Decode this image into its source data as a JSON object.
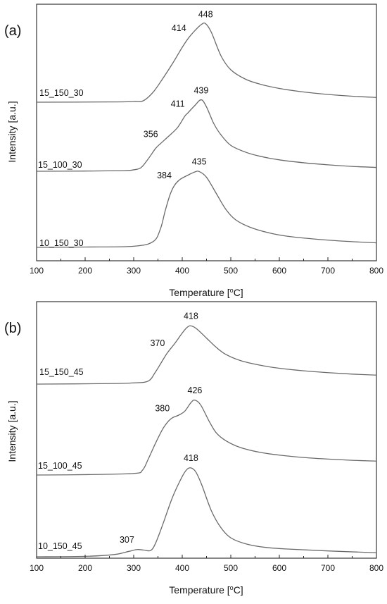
{
  "chart_data": [
    {
      "type": "line",
      "panel_label": "(a)",
      "xlabel": "Temperature [°C]",
      "xlabel_main": "Temperature [",
      "xlabel_sup": "o",
      "xlabel_unit": "C]",
      "ylabel": "Intensity [a.u.]",
      "xlim": [
        100,
        800
      ],
      "xticks": [
        "100",
        "200",
        "300",
        "400",
        "500",
        "600",
        "700",
        "800"
      ],
      "y_tick_labels": false,
      "grid": false,
      "legend": "none",
      "series": [
        {
          "name": "15_150_30",
          "points": [
            [
              100,
              0.0
            ],
            [
              250,
              0.02
            ],
            [
              300,
              0.05
            ],
            [
              320,
              0.12
            ],
            [
              340,
              0.8
            ],
            [
              360,
              1.9
            ],
            [
              380,
              3.1
            ],
            [
              400,
              4.4
            ],
            [
              414,
              5.2
            ],
            [
              430,
              5.9
            ],
            [
              440,
              6.25
            ],
            [
              448,
              6.3
            ],
            [
              460,
              5.6
            ],
            [
              480,
              3.7
            ],
            [
              500,
              2.6
            ],
            [
              530,
              1.85
            ],
            [
              560,
              1.45
            ],
            [
              600,
              1.1
            ],
            [
              650,
              0.82
            ],
            [
              700,
              0.62
            ],
            [
              750,
              0.48
            ],
            [
              800,
              0.38
            ]
          ],
          "peaks": [
            {
              "x": 414,
              "label": "414"
            },
            {
              "x": 448,
              "label": "448"
            }
          ]
        },
        {
          "name": "15_100_30",
          "points": [
            [
              100,
              0.0
            ],
            [
              200,
              0.02
            ],
            [
              280,
              0.06
            ],
            [
              300,
              0.14
            ],
            [
              315,
              0.35
            ],
            [
              330,
              1.2
            ],
            [
              345,
              2.2
            ],
            [
              356,
              2.7
            ],
            [
              370,
              3.3
            ],
            [
              390,
              4.2
            ],
            [
              405,
              5.3
            ],
            [
              411,
              5.6
            ],
            [
              425,
              6.3
            ],
            [
              439,
              6.9
            ],
            [
              450,
              6.2
            ],
            [
              465,
              4.6
            ],
            [
              480,
              3.5
            ],
            [
              500,
              2.5
            ],
            [
              530,
              1.85
            ],
            [
              560,
              1.45
            ],
            [
              600,
              1.1
            ],
            [
              650,
              0.82
            ],
            [
              700,
              0.62
            ],
            [
              750,
              0.47
            ],
            [
              800,
              0.37
            ]
          ],
          "peaks": [
            {
              "x": 356,
              "label": "356"
            },
            {
              "x": 411,
              "label": "411"
            },
            {
              "x": 439,
              "label": "439"
            }
          ]
        },
        {
          "name": "10_150_30",
          "points": [
            [
              100,
              0.0
            ],
            [
              200,
              0.03
            ],
            [
              300,
              0.1
            ],
            [
              340,
              0.5
            ],
            [
              355,
              1.6
            ],
            [
              365,
              3.2
            ],
            [
              375,
              4.6
            ],
            [
              384,
              5.4
            ],
            [
              395,
              5.9
            ],
            [
              410,
              6.25
            ],
            [
              425,
              6.55
            ],
            [
              435,
              6.6
            ],
            [
              450,
              6.1
            ],
            [
              470,
              4.7
            ],
            [
              490,
              3.3
            ],
            [
              510,
              2.4
            ],
            [
              540,
              1.75
            ],
            [
              580,
              1.25
            ],
            [
              620,
              0.95
            ],
            [
              680,
              0.7
            ],
            [
              740,
              0.52
            ],
            [
              800,
              0.4
            ]
          ],
          "peaks": [
            {
              "x": 384,
              "label": "384"
            },
            {
              "x": 435,
              "label": "435"
            }
          ]
        }
      ]
    },
    {
      "type": "line",
      "panel_label": "(b)",
      "xlabel": "Temperature [°C]",
      "xlabel_main": "Temperature [",
      "xlabel_sup": "o",
      "xlabel_unit": "C]",
      "ylabel": "Intensity [a.u.]",
      "xlim": [
        100,
        800
      ],
      "xticks": [
        "100",
        "200",
        "300",
        "400",
        "500",
        "600",
        "700",
        "800"
      ],
      "y_tick_labels": false,
      "grid": false,
      "legend": "none",
      "series": [
        {
          "name": "15_150_45",
          "points": [
            [
              100,
              0.0
            ],
            [
              250,
              0.05
            ],
            [
              300,
              0.12
            ],
            [
              330,
              0.3
            ],
            [
              345,
              1.2
            ],
            [
              358,
              2.2
            ],
            [
              370,
              3.1
            ],
            [
              385,
              4.0
            ],
            [
              400,
              5.0
            ],
            [
              410,
              5.55
            ],
            [
              418,
              5.7
            ],
            [
              430,
              5.4
            ],
            [
              450,
              4.5
            ],
            [
              470,
              3.6
            ],
            [
              490,
              2.9
            ],
            [
              520,
              2.3
            ],
            [
              560,
              1.85
            ],
            [
              600,
              1.55
            ],
            [
              650,
              1.3
            ],
            [
              700,
              1.12
            ],
            [
              750,
              0.98
            ],
            [
              800,
              0.88
            ]
          ],
          "peaks": [
            {
              "x": 370,
              "label": "370"
            },
            {
              "x": 418,
              "label": "418"
            }
          ]
        },
        {
          "name": "15_100_45",
          "points": [
            [
              100,
              0.0
            ],
            [
              200,
              0.05
            ],
            [
              300,
              0.2
            ],
            [
              318,
              0.6
            ],
            [
              330,
              2.0
            ],
            [
              345,
              4.0
            ],
            [
              360,
              5.8
            ],
            [
              372,
              6.8
            ],
            [
              380,
              7.2
            ],
            [
              392,
              7.5
            ],
            [
              405,
              8.0
            ],
            [
              418,
              9.1
            ],
            [
              426,
              9.4
            ],
            [
              438,
              8.8
            ],
            [
              455,
              6.8
            ],
            [
              470,
              5.3
            ],
            [
              490,
              4.3
            ],
            [
              520,
              3.45
            ],
            [
              560,
              2.85
            ],
            [
              600,
              2.5
            ],
            [
              650,
              2.2
            ],
            [
              700,
              2.0
            ],
            [
              750,
              1.85
            ],
            [
              800,
              1.75
            ]
          ],
          "peaks": [
            {
              "x": 380,
              "label": "380"
            },
            {
              "x": 426,
              "label": "426"
            }
          ]
        },
        {
          "name": "10_150_45",
          "points": [
            [
              100,
              0.0
            ],
            [
              200,
              0.05
            ],
            [
              260,
              0.25
            ],
            [
              290,
              0.6
            ],
            [
              307,
              0.8
            ],
            [
              320,
              0.75
            ],
            [
              335,
              0.7
            ],
            [
              345,
              1.5
            ],
            [
              360,
              3.6
            ],
            [
              380,
              6.6
            ],
            [
              400,
              8.9
            ],
            [
              410,
              9.7
            ],
            [
              418,
              9.85
            ],
            [
              428,
              9.4
            ],
            [
              440,
              8.0
            ],
            [
              460,
              5.1
            ],
            [
              480,
              3.2
            ],
            [
              500,
              2.1
            ],
            [
              530,
              1.45
            ],
            [
              570,
              1.05
            ],
            [
              620,
              0.85
            ],
            [
              700,
              0.65
            ],
            [
              800,
              0.45
            ]
          ],
          "peaks": [
            {
              "x": 307,
              "label": "307"
            },
            {
              "x": 418,
              "label": "418"
            }
          ]
        }
      ]
    }
  ]
}
